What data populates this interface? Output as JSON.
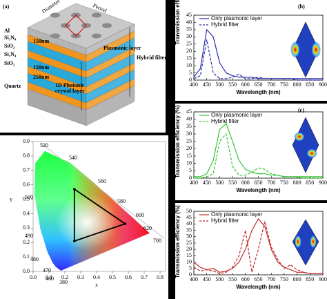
{
  "diagram": {
    "label": "(a)",
    "top_labels": [
      "Diameter",
      "Period"
    ],
    "layer_labels": [
      "Al",
      "Si₃N₄",
      "SiO₂",
      "Si₃N₄",
      "SiO₂",
      "Quartz"
    ],
    "thickness_labels": [
      "150nm",
      "150nm",
      "250nm"
    ],
    "plasmonic_label": "Plasmonic layer",
    "hybrid_label": "Hybrid filter",
    "photonic_label": [
      "1D Photonic",
      "crystal layer"
    ]
  },
  "chart_data": [
    {
      "type": "line",
      "label": "(b)",
      "xlabel": "Wavelength (nm)",
      "ylabel": "Transmission efficiency (%)",
      "x": [
        400,
        425,
        450,
        475,
        500,
        525,
        550,
        575,
        600,
        625,
        650,
        675,
        700,
        725,
        750,
        775,
        800,
        825,
        850,
        875,
        900
      ],
      "series": [
        {
          "name": "Only plasmonic layer",
          "color": "#2a2aa8",
          "style": "solid",
          "values": [
            2,
            8,
            35,
            30,
            12,
            5,
            3,
            2,
            2,
            2,
            1,
            1,
            1,
            1,
            1,
            1,
            1,
            1,
            1,
            1,
            1
          ]
        },
        {
          "name": "Hybrid filter",
          "color": "#2a2aa8",
          "style": "dashed",
          "values": [
            1,
            3,
            28,
            5,
            1,
            1,
            2,
            4,
            1,
            1,
            2,
            1,
            1,
            1,
            1,
            1,
            0,
            0,
            0,
            0,
            0
          ]
        }
      ],
      "xlim": [
        400,
        900
      ],
      "xticks": [
        400,
        450,
        500,
        550,
        600,
        650,
        700,
        750,
        800,
        850,
        900
      ],
      "ylim": [
        0,
        45
      ],
      "yticks": [
        0,
        5,
        10,
        15,
        20,
        25,
        30,
        35,
        40,
        45
      ]
    },
    {
      "type": "line",
      "label": "(c)",
      "xlabel": "Wavelength (nm)",
      "ylabel": "Transmission efficiency (%)",
      "x": [
        400,
        425,
        450,
        475,
        500,
        525,
        550,
        575,
        600,
        625,
        650,
        675,
        700,
        725,
        750,
        775,
        800,
        825,
        850,
        875,
        900
      ],
      "series": [
        {
          "name": "Only plasmonic layer",
          "color": "#33c633",
          "style": "solid",
          "values": [
            1,
            1,
            3,
            12,
            33,
            37,
            25,
            12,
            6,
            4,
            3,
            3,
            2,
            2,
            1,
            1,
            1,
            1,
            1,
            1,
            1
          ]
        },
        {
          "name": "Hybrid filter",
          "color": "#33c633",
          "style": "dashed",
          "values": [
            0,
            0,
            1,
            3,
            25,
            30,
            8,
            2,
            2,
            4,
            7,
            6,
            3,
            2,
            1,
            1,
            1,
            0,
            0,
            0,
            0
          ]
        }
      ],
      "xlim": [
        400,
        900
      ],
      "xticks": [
        400,
        450,
        500,
        550,
        600,
        650,
        700,
        750,
        800,
        850,
        900
      ],
      "ylim": [
        0,
        45
      ],
      "yticks": [
        0,
        5,
        10,
        15,
        20,
        25,
        30,
        35,
        40,
        45
      ]
    },
    {
      "type": "line",
      "xlabel": "Wavelength (nm)",
      "ylabel": "Transmission efficiency (%)",
      "x": [
        400,
        425,
        450,
        475,
        500,
        525,
        550,
        575,
        600,
        625,
        650,
        675,
        700,
        725,
        750,
        775,
        800,
        825,
        850,
        875,
        900
      ],
      "series": [
        {
          "name": "Only plasmonic layer",
          "color": "#c0282a",
          "style": "solid",
          "values": [
            10,
            6,
            4,
            5,
            2,
            3,
            5,
            10,
            20,
            35,
            44,
            38,
            20,
            10,
            6,
            4,
            2,
            2,
            1,
            1,
            1
          ]
        },
        {
          "name": "Hybrid filter",
          "color": "#c0282a",
          "style": "dashed",
          "values": [
            6,
            3,
            4,
            3,
            1,
            2,
            6,
            15,
            35,
            2,
            20,
            42,
            22,
            12,
            5,
            8,
            4,
            2,
            1,
            1,
            1
          ]
        }
      ],
      "xlim": [
        400,
        900
      ],
      "xticks": [
        400,
        450,
        500,
        550,
        600,
        650,
        700,
        750,
        800,
        850,
        900
      ],
      "ylim": [
        0,
        50
      ],
      "yticks": [
        0,
        5,
        10,
        15,
        20,
        25,
        30,
        35,
        40,
        45,
        50
      ]
    },
    {
      "type": "chromaticity",
      "xlabel": "x",
      "ylabel": "y",
      "color": "#000000",
      "closed": true,
      "x": [
        0.26,
        0.26,
        0.58
      ],
      "values": [
        0.57,
        0.21,
        0.33
      ],
      "locus_labels": [
        "520",
        "540",
        "560",
        "580",
        "600",
        "620",
        "700",
        "500",
        "490",
        "480",
        "470",
        "460",
        "380"
      ],
      "xlim": [
        0,
        0.8
      ],
      "xticks": [
        {
          "value": 0,
          "label": "0.0"
        },
        0.1,
        0.2,
        0.3,
        0.4,
        0.5,
        0.6,
        0.7,
        0.8
      ],
      "ylim": [
        0,
        0.9
      ],
      "yticks": [
        {
          "value": 0,
          "label": "0.0"
        },
        0.1,
        0.2,
        0.3,
        0.4,
        0.5,
        0.6,
        0.7,
        0.8,
        0.9
      ]
    }
  ]
}
